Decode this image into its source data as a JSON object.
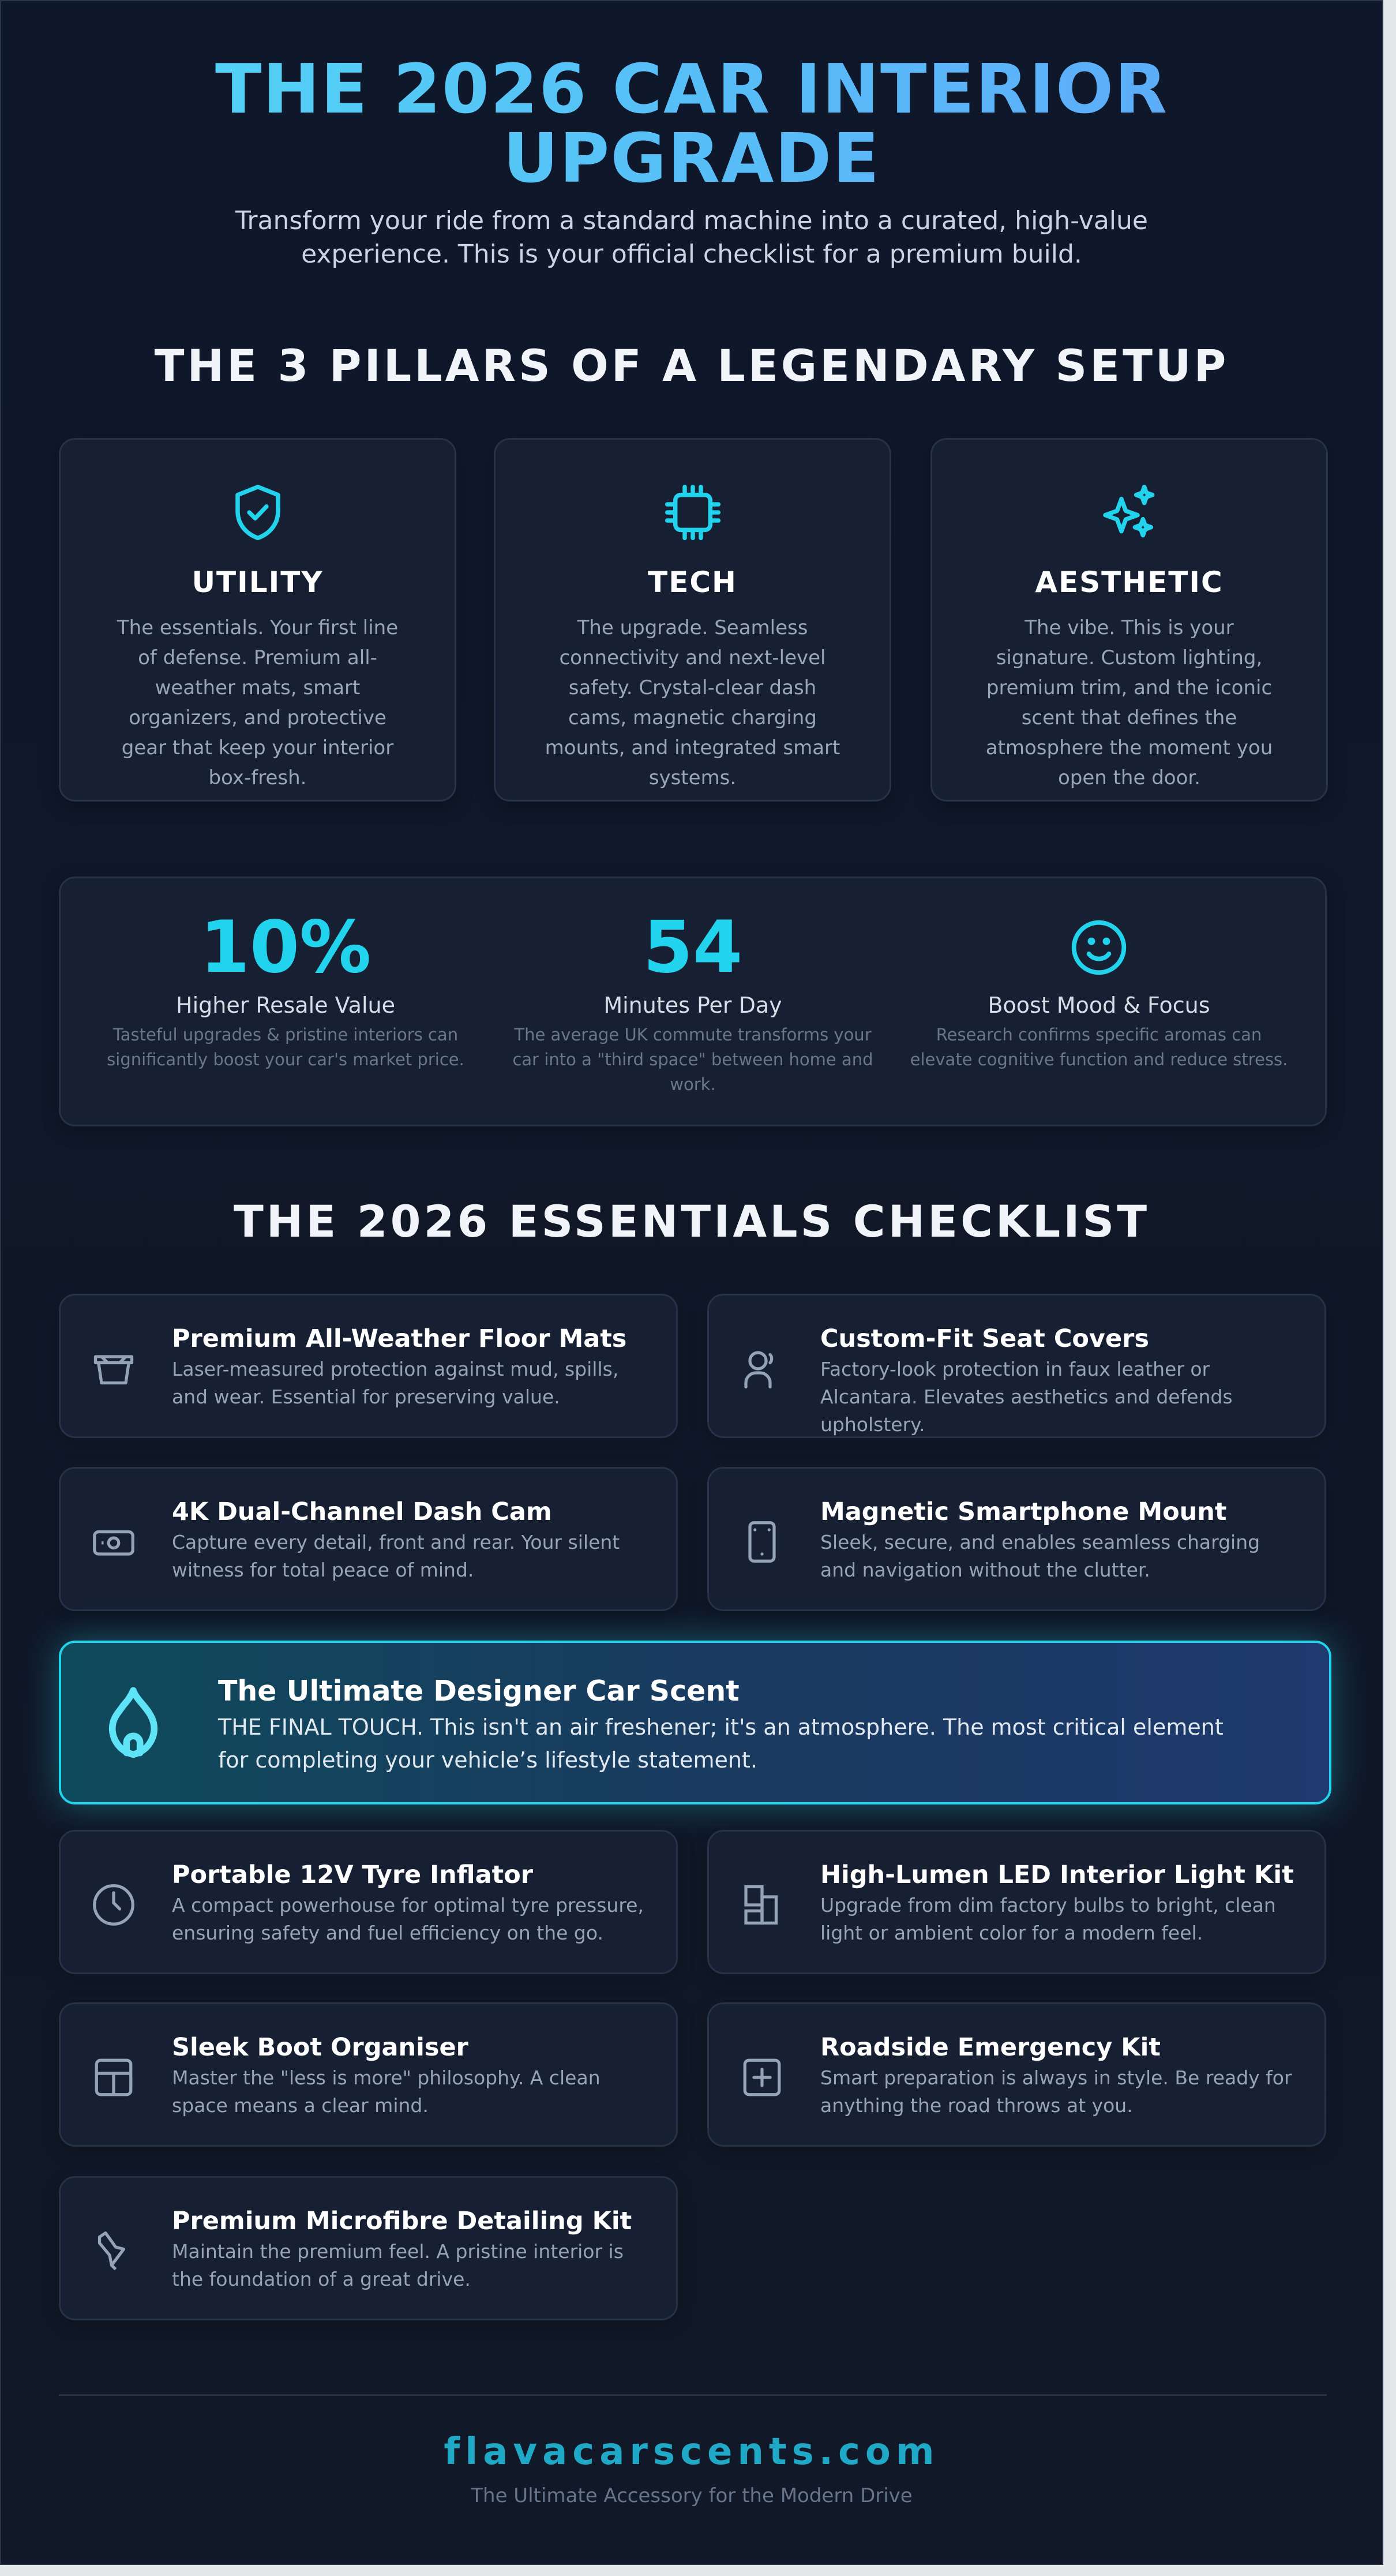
{
  "header": {
    "title_line1": "THE 2026 CAR INTERIOR",
    "title_line2": "UPGRADE",
    "subtitle": "Transform your ride from a standard machine into a curated, high-value experience. This is your official checklist for a premium build."
  },
  "pillars": {
    "heading": "THE 3 PILLARS OF A LEGENDARY SETUP",
    "items": [
      {
        "icon": "shield-check-icon",
        "title": "UTILITY",
        "desc": "The essentials. Your first line of defense. Premium all-weather mats, smart organizers, and protective gear that keep your interior box-fresh."
      },
      {
        "icon": "cpu-chip-icon",
        "title": "TECH",
        "desc": "The upgrade. Seamless connectivity and next-level safety. Crystal-clear dash cams, magnetic charging mounts, and integrated smart systems."
      },
      {
        "icon": "sparkles-icon",
        "title": "AESTHETIC",
        "desc": "The vibe. This is your signature. Custom lighting, premium trim, and the iconic scent that defines the atmosphere the moment you open the door."
      }
    ]
  },
  "stats": [
    {
      "value": "10%",
      "label": "Higher Resale Value",
      "desc": "Tasteful upgrades & pristine interiors can significantly boost your car's market price."
    },
    {
      "value": "54",
      "label": "Minutes Per Day",
      "desc": "The average UK commute transforms your car into a \"third space\" between home and work."
    },
    {
      "icon": "smile-icon",
      "label": "Boost Mood & Focus",
      "desc": "Research confirms specific aromas can elevate cognitive function and reduce stress."
    }
  ],
  "checklist": {
    "heading": "THE 2026 ESSENTIALS CHECKLIST",
    "items": [
      {
        "icon": "basket-icon",
        "title": "Premium All-Weather Floor Mats",
        "desc": "Laser-measured protection against mud, spills, and wear. Essential for preserving value."
      },
      {
        "icon": "user-icon",
        "title": "Custom-Fit Seat Covers",
        "desc": "Factory-look protection in faux leather or Alcantara. Elevates aesthetics and defends upholstery."
      },
      {
        "icon": "camera-icon",
        "title": "4K Dual-Channel Dash Cam",
        "desc": "Capture every detail, front and rear. Your silent witness for total peace of mind."
      },
      {
        "icon": "smartphone-icon",
        "title": "Magnetic Smartphone Mount",
        "desc": "Sleek, secure, and enables seamless charging and navigation without the clutter."
      },
      {
        "icon": "gauge-icon",
        "title": "Portable 12V Tyre Inflator",
        "desc": "A compact powerhouse for optimal tyre pressure, ensuring safety and fuel efficiency on the go."
      },
      {
        "icon": "layout-blocks-icon",
        "title": "High-Lumen LED Interior Light Kit",
        "desc": "Upgrade from dim factory bulbs to bright, clean light or ambient color for a modern feel."
      },
      {
        "icon": "grid-box-icon",
        "title": "Sleek Boot Organiser",
        "desc": "Master the \"less is more\" philosophy. A clean space means a clear mind."
      },
      {
        "icon": "plus-square-icon",
        "title": "Roadside Emergency Kit",
        "desc": "Smart preparation is always in style. Be ready for anything the road throws at you."
      },
      {
        "icon": "brush-icon",
        "title": "Premium Microfibre Detailing Kit",
        "desc": "Maintain the premium feel. A pristine interior is the foundation of a great drive."
      }
    ],
    "featured": {
      "icon": "flame-drop-icon",
      "title": "The Ultimate Designer Car Scent",
      "desc": "THE FINAL TOUCH. This isn't an air freshener; it's an atmosphere. The most critical element for completing your vehicle’s lifestyle statement."
    }
  },
  "footer": {
    "domain": "flavacarscents.com",
    "tagline": "The Ultimate Accessory for the Modern Drive"
  },
  "colors": {
    "accent": "#22d3ee",
    "background": "#111827",
    "card": "#172033",
    "footer_domain": "#1fa9c6"
  }
}
